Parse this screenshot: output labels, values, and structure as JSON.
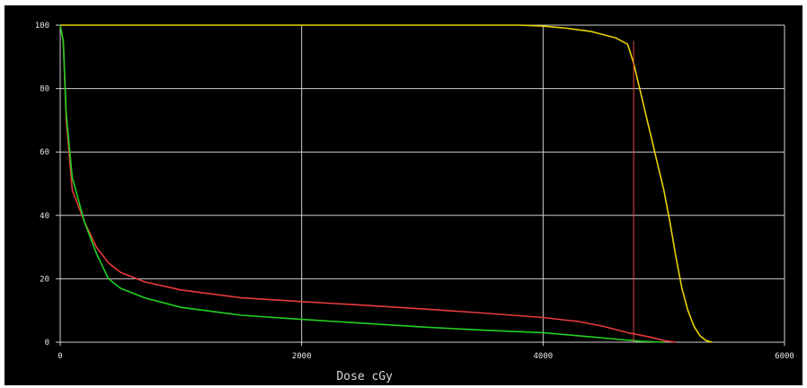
{
  "chart_data": {
    "type": "line",
    "title": "",
    "xlabel": "Dose cGy",
    "ylabel": "",
    "xlim": [
      0,
      6000
    ],
    "ylim": [
      0,
      100
    ],
    "x_ticks": [
      "0",
      "2000",
      "4000",
      "6000"
    ],
    "y_ticks": [
      "0",
      "20",
      "40",
      "60",
      "80",
      "100"
    ],
    "grid": true,
    "legend": "none",
    "background": "#000000",
    "grid_color": "#cfcfcf",
    "series": [
      {
        "color": "#e8d200",
        "points": [
          [
            0,
            100
          ],
          [
            3800,
            100
          ],
          [
            4000,
            99.7
          ],
          [
            4200,
            99
          ],
          [
            4400,
            98
          ],
          [
            4600,
            96
          ],
          [
            4700,
            94
          ],
          [
            4750,
            88
          ],
          [
            4800,
            80
          ],
          [
            4850,
            72
          ],
          [
            4900,
            64
          ],
          [
            4950,
            56
          ],
          [
            5000,
            48
          ],
          [
            5050,
            38
          ],
          [
            5100,
            27
          ],
          [
            5150,
            17
          ],
          [
            5200,
            10
          ],
          [
            5250,
            5
          ],
          [
            5300,
            2
          ],
          [
            5350,
            0.5
          ],
          [
            5400,
            0
          ]
        ]
      },
      {
        "color": "#e83a3a",
        "points": [
          [
            0,
            100
          ],
          [
            25,
            95
          ],
          [
            50,
            70
          ],
          [
            100,
            48
          ],
          [
            200,
            38
          ],
          [
            300,
            30
          ],
          [
            400,
            25
          ],
          [
            500,
            22
          ],
          [
            700,
            19
          ],
          [
            1000,
            16.5
          ],
          [
            1500,
            14
          ],
          [
            2000,
            12.8
          ],
          [
            2500,
            11.7
          ],
          [
            3000,
            10.5
          ],
          [
            3500,
            9.2
          ],
          [
            4000,
            7.8
          ],
          [
            4300,
            6.5
          ],
          [
            4500,
            5
          ],
          [
            4700,
            3
          ],
          [
            4900,
            1.5
          ],
          [
            5000,
            0.5
          ],
          [
            5100,
            0
          ]
        ]
      },
      {
        "color": "#22d022",
        "points": [
          [
            0,
            100
          ],
          [
            25,
            95
          ],
          [
            50,
            72
          ],
          [
            100,
            52
          ],
          [
            200,
            38
          ],
          [
            300,
            28
          ],
          [
            400,
            20
          ],
          [
            500,
            17
          ],
          [
            700,
            14
          ],
          [
            1000,
            11
          ],
          [
            1500,
            8.5
          ],
          [
            2000,
            7.2
          ],
          [
            2500,
            6
          ],
          [
            3000,
            4.8
          ],
          [
            3500,
            3.8
          ],
          [
            4000,
            3
          ],
          [
            4300,
            2
          ],
          [
            4600,
            1
          ],
          [
            4800,
            0.3
          ],
          [
            5000,
            0
          ]
        ]
      }
    ],
    "reference_lines": [
      {
        "x": 4750,
        "color": "#e84a4a"
      }
    ]
  }
}
